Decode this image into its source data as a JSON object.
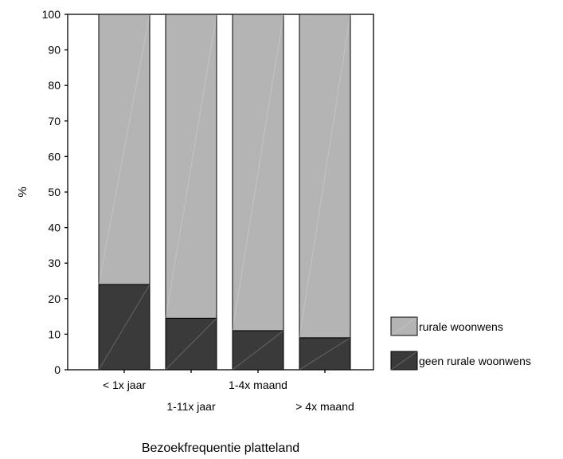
{
  "chart_data": {
    "type": "bar",
    "stacked": true,
    "percent": true,
    "categories": [
      "< 1x jaar",
      "1-11x jaar",
      "1-4x maand",
      "> 4x maand"
    ],
    "series": [
      {
        "name": "geen rurale woonwens",
        "values": [
          24,
          14.5,
          11,
          9
        ],
        "color": "#3a3a3a"
      },
      {
        "name": "rurale woonwens",
        "values": [
          76,
          85.5,
          89,
          91
        ],
        "color": "#b4b4b4"
      }
    ],
    "title": "",
    "xlabel": "Bezoekfrequentie platteland",
    "ylabel": "%",
    "ylim": [
      0,
      100
    ],
    "yticks": [
      0,
      10,
      20,
      30,
      40,
      50,
      60,
      70,
      80,
      90,
      100
    ],
    "grid": false,
    "legend": "right"
  }
}
